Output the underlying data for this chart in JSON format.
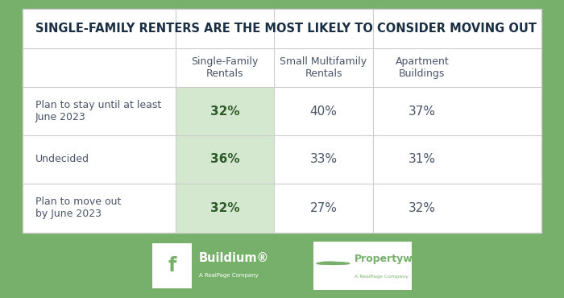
{
  "title": "SINGLE-FAMILY RENTERS ARE THE MOST LIKELY TO CONSIDER MOVING OUT",
  "columns": [
    "Single-Family\nRentals",
    "Small Multifamily\nRentals",
    "Apartment\nBuildings"
  ],
  "rows": [
    {
      "label": "Plan to stay until at least\nJune 2023",
      "values": [
        "32%",
        "40%",
        "37%"
      ]
    },
    {
      "label": "Undecided",
      "values": [
        "36%",
        "33%",
        "31%"
      ]
    },
    {
      "label": "Plan to move out\nby June 2023",
      "values": [
        "32%",
        "27%",
        "32%"
      ]
    }
  ],
  "highlight_col": 0,
  "highlight_color": "#d4e8d0",
  "bg_color": "#77b06a",
  "table_bg": "#ffffff",
  "border_color": "#cccccc",
  "title_color": "#1a2e44",
  "header_color": "#4a5568",
  "row_label_color": "#4a5568",
  "value_color_highlight": "#2d5a27",
  "value_color_normal": "#4a5568",
  "title_fontsize": 10.5,
  "header_fontsize": 9,
  "value_fontsize": 11,
  "label_fontsize": 9
}
